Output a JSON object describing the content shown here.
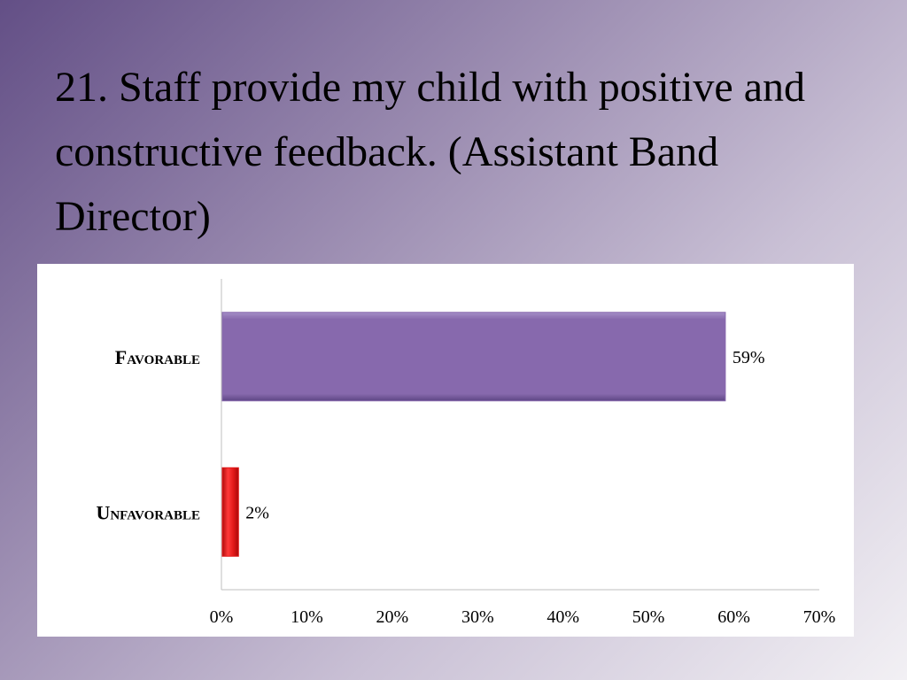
{
  "slide": {
    "title": "21. Staff provide my child with positive and constructive feedback. (Assistant Band Director)"
  },
  "chart_data": {
    "type": "bar",
    "orientation": "horizontal",
    "categories": [
      "Favorable",
      "Unfavorable"
    ],
    "values": [
      59,
      2
    ],
    "value_labels": [
      "59%",
      "2%"
    ],
    "colors": [
      "#8769ad",
      "#e01818"
    ],
    "xlim": [
      0,
      70
    ],
    "x_ticks": [
      "0%",
      "10%",
      "20%",
      "30%",
      "40%",
      "50%",
      "60%",
      "70%"
    ],
    "grid": false,
    "legend": "none"
  }
}
